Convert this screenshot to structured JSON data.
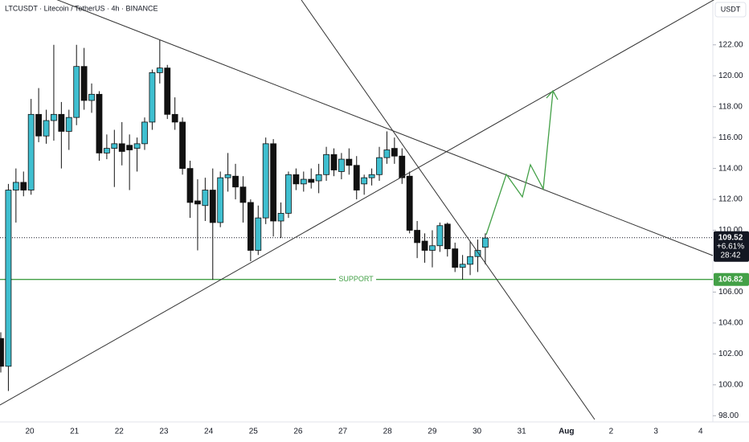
{
  "chart_data": {
    "type": "candlestick",
    "title": "LTCUSDT · Litecoin / TetherUS · 4h · BINANCE",
    "currency": "USDT",
    "up_color": "#3fbfd0",
    "down_color": "#111111",
    "ylim": [
      97.6,
      124.9
    ],
    "yticks": [
      {
        "value": 98,
        "label": "98.00"
      },
      {
        "value": 100,
        "label": "100.00"
      },
      {
        "value": 102,
        "label": "102.00"
      },
      {
        "value": 104,
        "label": "104.00"
      },
      {
        "value": 106,
        "label": "106.00"
      },
      {
        "value": 110,
        "label": "110.00"
      },
      {
        "value": 112,
        "label": "112.00"
      },
      {
        "value": 114,
        "label": "114.00"
      },
      {
        "value": 116,
        "label": "116.00"
      },
      {
        "value": 118,
        "label": "118.00"
      },
      {
        "value": 120,
        "label": "120.00"
      },
      {
        "value": 122,
        "label": "122.00"
      }
    ],
    "xtick_labels": [
      "20",
      "21",
      "22",
      "23",
      "24",
      "25",
      "26",
      "27",
      "28",
      "29",
      "30",
      "31",
      "Aug",
      "2",
      "3",
      "4"
    ],
    "candles": [
      {
        "o": 103,
        "h": 103.4,
        "l": 100.8,
        "c": 101.2
      },
      {
        "o": 101.2,
        "h": 113,
        "l": 99.6,
        "c": 112.6
      },
      {
        "o": 112.6,
        "h": 114,
        "l": 110.5,
        "c": 113.1
      },
      {
        "o": 113.1,
        "h": 113.8,
        "l": 112.2,
        "c": 112.6
      },
      {
        "o": 112.6,
        "h": 118.5,
        "l": 112.3,
        "c": 117.5
      },
      {
        "o": 117.5,
        "h": 119.2,
        "l": 115.7,
        "c": 116.1
      },
      {
        "o": 116.1,
        "h": 117.8,
        "l": 115.6,
        "c": 117.1
      },
      {
        "o": 117.1,
        "h": 122,
        "l": 115.8,
        "c": 117.5
      },
      {
        "o": 117.5,
        "h": 118.3,
        "l": 114,
        "c": 116.4
      },
      {
        "o": 116.4,
        "h": 117.8,
        "l": 115.2,
        "c": 117.3
      },
      {
        "o": 117.3,
        "h": 122,
        "l": 116.8,
        "c": 120.6
      },
      {
        "o": 120.6,
        "h": 121.8,
        "l": 117.8,
        "c": 118.4
      },
      {
        "o": 118.4,
        "h": 119.5,
        "l": 117.6,
        "c": 118.8
      },
      {
        "o": 118.8,
        "h": 119,
        "l": 114.5,
        "c": 115
      },
      {
        "o": 115,
        "h": 116.2,
        "l": 114.6,
        "c": 115.3
      },
      {
        "o": 115.3,
        "h": 116.5,
        "l": 112.8,
        "c": 115.6
      },
      {
        "o": 115.6,
        "h": 117,
        "l": 114.2,
        "c": 115.1
      },
      {
        "o": 115.5,
        "h": 116.2,
        "l": 112.6,
        "c": 115.2
      },
      {
        "o": 115.3,
        "h": 116,
        "l": 113.8,
        "c": 115.6
      },
      {
        "o": 115.6,
        "h": 117.3,
        "l": 115.2,
        "c": 117
      },
      {
        "o": 117,
        "h": 120.4,
        "l": 116.5,
        "c": 120.2
      },
      {
        "o": 120.2,
        "h": 122.3,
        "l": 119.5,
        "c": 120.5
      },
      {
        "o": 120.5,
        "h": 120.7,
        "l": 117.2,
        "c": 117.5
      },
      {
        "o": 117.5,
        "h": 118.6,
        "l": 116.5,
        "c": 117
      },
      {
        "o": 117,
        "h": 117.3,
        "l": 113.6,
        "c": 114
      },
      {
        "o": 114,
        "h": 114.5,
        "l": 110.8,
        "c": 111.8
      },
      {
        "o": 111.9,
        "h": 113.3,
        "l": 108.7,
        "c": 111.7
      },
      {
        "o": 111.6,
        "h": 113.4,
        "l": 110.6,
        "c": 112.6
      },
      {
        "o": 112.6,
        "h": 114,
        "l": 106.8,
        "c": 110.5
      },
      {
        "o": 110.5,
        "h": 113.8,
        "l": 110.2,
        "c": 113.4
      },
      {
        "o": 113.4,
        "h": 115,
        "l": 112.5,
        "c": 113.6
      },
      {
        "o": 113.5,
        "h": 114.3,
        "l": 112,
        "c": 112.8
      },
      {
        "o": 112.8,
        "h": 113.5,
        "l": 110.5,
        "c": 111.8
      },
      {
        "o": 111.8,
        "h": 112,
        "l": 108,
        "c": 108.7
      },
      {
        "o": 108.7,
        "h": 111.6,
        "l": 108.4,
        "c": 110.8
      },
      {
        "o": 110.8,
        "h": 116,
        "l": 110.4,
        "c": 115.6
      },
      {
        "o": 115.6,
        "h": 115.9,
        "l": 109.6,
        "c": 110.6
      },
      {
        "o": 110.6,
        "h": 111.8,
        "l": 109.5,
        "c": 111.1
      },
      {
        "o": 111.1,
        "h": 113.8,
        "l": 110.8,
        "c": 113.6
      },
      {
        "o": 113.6,
        "h": 114,
        "l": 112.6,
        "c": 113
      },
      {
        "o": 113,
        "h": 113.8,
        "l": 112.5,
        "c": 113.3
      },
      {
        "o": 113.3,
        "h": 114,
        "l": 112.7,
        "c": 113.1
      },
      {
        "o": 113.2,
        "h": 114.3,
        "l": 112.4,
        "c": 113.6
      },
      {
        "o": 113.6,
        "h": 115.4,
        "l": 113.2,
        "c": 114.9
      },
      {
        "o": 114.9,
        "h": 115.3,
        "l": 113.5,
        "c": 113.9
      },
      {
        "o": 113.8,
        "h": 115,
        "l": 113.3,
        "c": 114.6
      },
      {
        "o": 114.6,
        "h": 115.3,
        "l": 113.6,
        "c": 114.2
      },
      {
        "o": 114.2,
        "h": 114.8,
        "l": 112,
        "c": 112.6
      },
      {
        "o": 113,
        "h": 113.6,
        "l": 112.3,
        "c": 113.4
      },
      {
        "o": 113.4,
        "h": 114,
        "l": 112.9,
        "c": 113.6
      },
      {
        "o": 113.6,
        "h": 115.4,
        "l": 113.2,
        "c": 114.7
      },
      {
        "o": 114.7,
        "h": 116.4,
        "l": 114.3,
        "c": 115.2
      },
      {
        "o": 115.3,
        "h": 116,
        "l": 114.3,
        "c": 114.8
      },
      {
        "o": 114.8,
        "h": 115.3,
        "l": 113,
        "c": 113.4
      },
      {
        "o": 113.5,
        "h": 113.8,
        "l": 109.8,
        "c": 110
      },
      {
        "o": 110,
        "h": 110.6,
        "l": 108.2,
        "c": 109.2
      },
      {
        "o": 109.3,
        "h": 109.8,
        "l": 107.9,
        "c": 108.7
      },
      {
        "o": 108.7,
        "h": 110,
        "l": 107.6,
        "c": 109
      },
      {
        "o": 109,
        "h": 110.5,
        "l": 108.6,
        "c": 110.3
      },
      {
        "o": 110.4,
        "h": 110.5,
        "l": 108.3,
        "c": 108.8
      },
      {
        "o": 108.8,
        "h": 109.2,
        "l": 107.3,
        "c": 107.6
      },
      {
        "o": 107.6,
        "h": 108.4,
        "l": 106.8,
        "c": 107.8
      },
      {
        "o": 107.8,
        "h": 109.3,
        "l": 107.1,
        "c": 108.3
      },
      {
        "o": 108.3,
        "h": 109.4,
        "l": 107.3,
        "c": 108.7
      },
      {
        "o": 108.9,
        "h": 109.8,
        "l": 107.8,
        "c": 109.5
      }
    ],
    "last_price": {
      "value": 109.52,
      "label": "109.52"
    },
    "change_label": "+6.61%",
    "countdown": "28:42",
    "support": {
      "value": 106.82,
      "label": "106.82",
      "text": "SUPPORT",
      "color": "#43a047"
    }
  }
}
